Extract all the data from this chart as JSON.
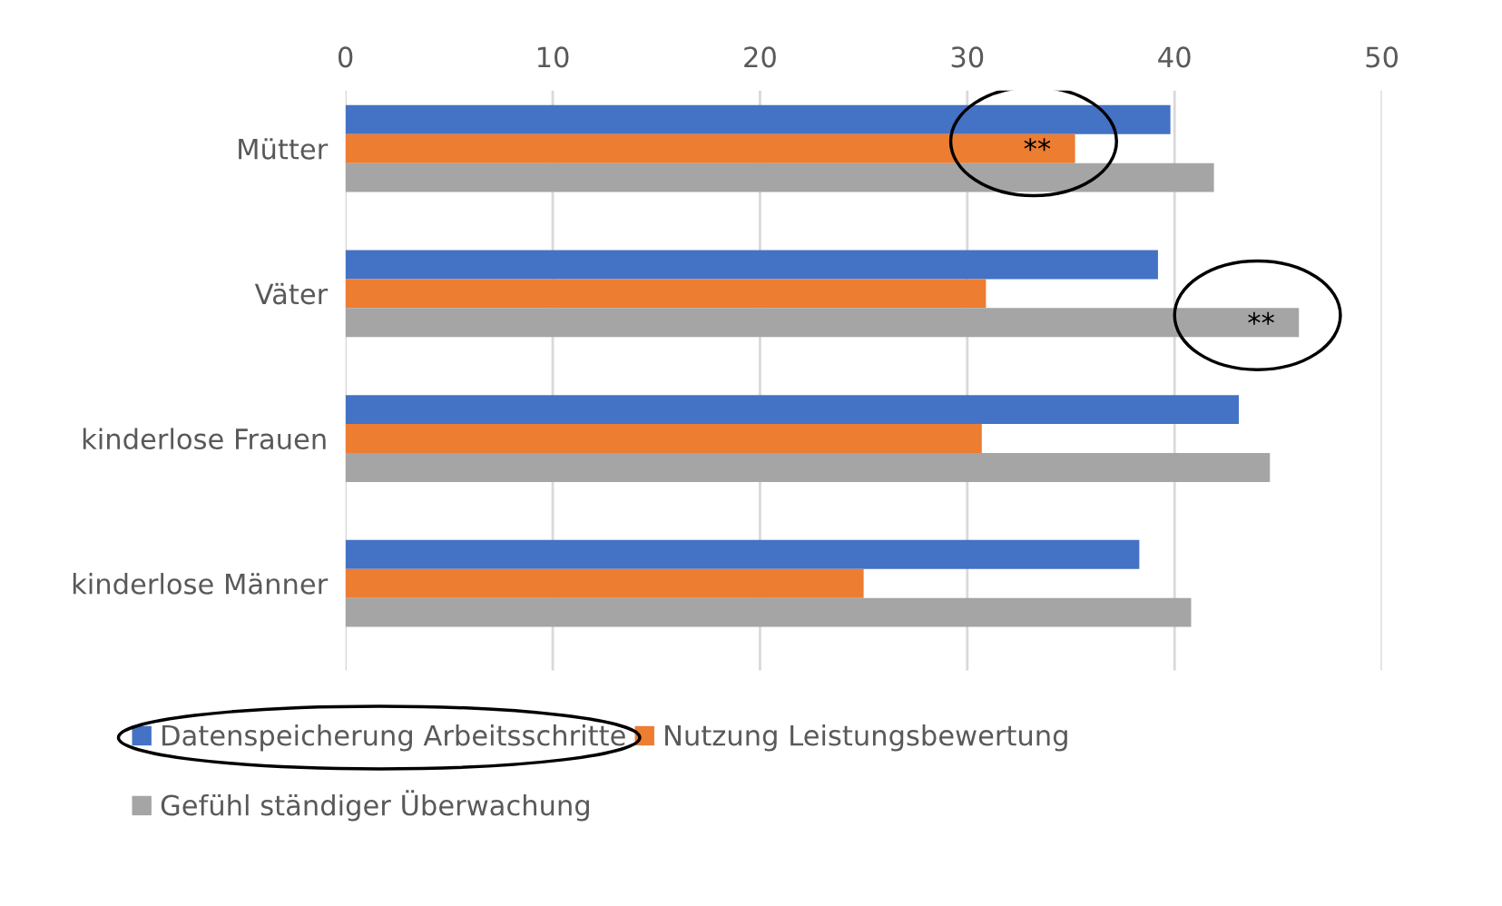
{
  "chart_data": {
    "type": "bar",
    "orientation": "horizontal",
    "categories": [
      "Mütter",
      "Väter",
      "kinderlose Frauen",
      "kinderlose Männer"
    ],
    "series": [
      {
        "name": "Datenspeicherung Arbeitsschritte",
        "color": "#4472c4",
        "values": [
          39.8,
          39.2,
          43.1,
          38.3
        ]
      },
      {
        "name": "Nutzung Leistungsbewertung",
        "color": "#ed7d31",
        "values": [
          35.2,
          30.9,
          30.7,
          25.0
        ]
      },
      {
        "name": "Gefühl ständiger Überwachung",
        "color": "#a5a5a5",
        "values": [
          41.9,
          46.0,
          44.6,
          40.8
        ]
      }
    ],
    "xlim": [
      0,
      50
    ],
    "xticks": [
      0,
      10,
      20,
      30,
      40,
      50
    ],
    "grid": "x",
    "legend": "bottom",
    "annotations": [
      {
        "text": "**",
        "x": 35.2
      },
      {
        "text": "**",
        "x": 46.0
      }
    ]
  }
}
